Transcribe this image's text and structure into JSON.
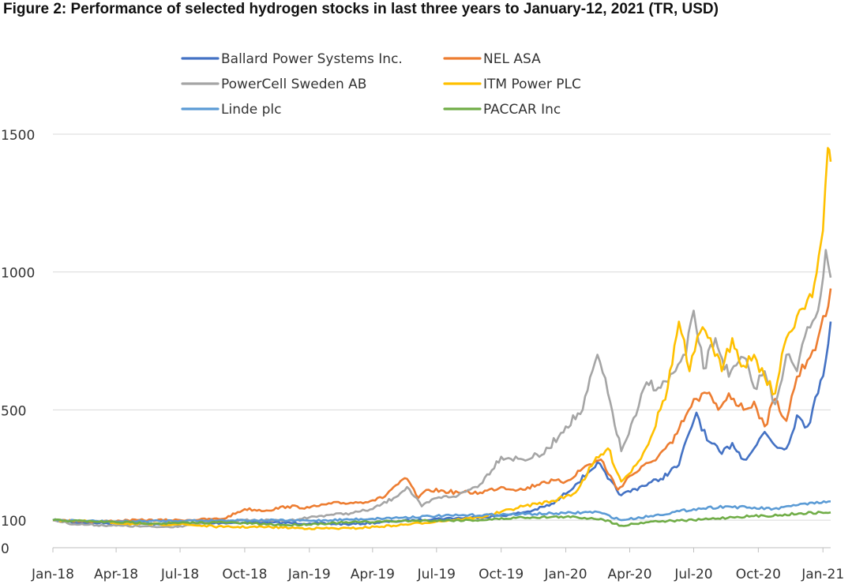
{
  "chart_data": {
    "type": "line",
    "title": "Figure 2: Performance of selected hydrogen stocks in last three years to January-12, 2021 (TR, USD)",
    "xlabel": "",
    "ylabel": "",
    "x_range": [
      "2018-01-01",
      "2021-01-12"
    ],
    "ylim": [
      0,
      1500
    ],
    "y_ticks": [
      0,
      100,
      500,
      1000,
      1500
    ],
    "x_ticks": [
      "Jan-18",
      "Apr-18",
      "Jul-18",
      "Oct-18",
      "Jan-19",
      "Apr-19",
      "Jul-19",
      "Oct-19",
      "Jan-20",
      "Apr-20",
      "Jul-20",
      "Oct-20",
      "Jan-21"
    ],
    "x_tick_dates": [
      "2018-01-01",
      "2018-04-01",
      "2018-07-01",
      "2018-10-01",
      "2019-01-01",
      "2019-04-01",
      "2019-07-01",
      "2019-10-01",
      "2020-01-01",
      "2020-04-01",
      "2020-07-01",
      "2020-10-01",
      "2021-01-01"
    ],
    "grid": "horizontal",
    "legend_position": "top",
    "series": [
      {
        "name": "Ballard Power Systems Inc.",
        "color": "#4472C4",
        "points": [
          [
            "2018-01-01",
            100
          ],
          [
            "2018-02-01",
            92
          ],
          [
            "2018-03-01",
            90
          ],
          [
            "2018-05-01",
            88
          ],
          [
            "2018-07-01",
            85
          ],
          [
            "2018-09-01",
            90
          ],
          [
            "2018-11-01",
            92
          ],
          [
            "2019-01-01",
            88
          ],
          [
            "2019-03-01",
            85
          ],
          [
            "2019-05-01",
            95
          ],
          [
            "2019-07-01",
            105
          ],
          [
            "2019-09-01",
            110
          ],
          [
            "2019-10-15",
            120
          ],
          [
            "2019-11-15",
            135
          ],
          [
            "2019-12-15",
            160
          ],
          [
            "2020-01-15",
            230
          ],
          [
            "2020-02-01",
            270
          ],
          [
            "2020-02-15",
            310
          ],
          [
            "2020-03-01",
            250
          ],
          [
            "2020-03-20",
            190
          ],
          [
            "2020-04-15",
            220
          ],
          [
            "2020-05-15",
            250
          ],
          [
            "2020-06-10",
            300
          ],
          [
            "2020-06-25",
            420
          ],
          [
            "2020-07-05",
            490
          ],
          [
            "2020-07-20",
            390
          ],
          [
            "2020-08-10",
            340
          ],
          [
            "2020-08-25",
            380
          ],
          [
            "2020-09-10",
            320
          ],
          [
            "2020-09-25",
            360
          ],
          [
            "2020-10-10",
            420
          ],
          [
            "2020-10-25",
            370
          ],
          [
            "2020-11-10",
            360
          ],
          [
            "2020-11-25",
            480
          ],
          [
            "2020-12-10",
            440
          ],
          [
            "2020-12-25",
            560
          ],
          [
            "2021-01-05",
            680
          ],
          [
            "2021-01-12",
            820
          ]
        ]
      },
      {
        "name": "NEL ASA",
        "color": "#ED7D31",
        "points": [
          [
            "2018-01-01",
            100
          ],
          [
            "2018-03-01",
            95
          ],
          [
            "2018-05-01",
            100
          ],
          [
            "2018-07-01",
            100
          ],
          [
            "2018-09-01",
            105
          ],
          [
            "2018-10-01",
            140
          ],
          [
            "2018-11-01",
            135
          ],
          [
            "2018-12-01",
            150
          ],
          [
            "2019-01-01",
            145
          ],
          [
            "2019-02-01",
            160
          ],
          [
            "2019-03-15",
            165
          ],
          [
            "2019-04-15",
            180
          ],
          [
            "2019-05-01",
            220
          ],
          [
            "2019-05-20",
            250
          ],
          [
            "2019-06-05",
            180
          ],
          [
            "2019-06-20",
            210
          ],
          [
            "2019-08-01",
            200
          ],
          [
            "2019-09-01",
            200
          ],
          [
            "2019-10-01",
            220
          ],
          [
            "2019-11-01",
            210
          ],
          [
            "2019-12-01",
            240
          ],
          [
            "2020-01-01",
            240
          ],
          [
            "2020-02-01",
            300
          ],
          [
            "2020-02-20",
            320
          ],
          [
            "2020-03-15",
            210
          ],
          [
            "2020-04-01",
            260
          ],
          [
            "2020-05-01",
            310
          ],
          [
            "2020-06-01",
            380
          ],
          [
            "2020-06-20",
            480
          ],
          [
            "2020-07-05",
            540
          ],
          [
            "2020-07-20",
            560
          ],
          [
            "2020-08-05",
            500
          ],
          [
            "2020-08-20",
            560
          ],
          [
            "2020-09-10",
            500
          ],
          [
            "2020-09-25",
            530
          ],
          [
            "2020-10-10",
            440
          ],
          [
            "2020-10-25",
            540
          ],
          [
            "2020-11-10",
            460
          ],
          [
            "2020-11-25",
            620
          ],
          [
            "2020-12-10",
            680
          ],
          [
            "2020-12-25",
            760
          ],
          [
            "2021-01-05",
            840
          ],
          [
            "2021-01-12",
            940
          ]
        ]
      },
      {
        "name": "PowerCell Sweden AB",
        "color": "#A5A5A5",
        "points": [
          [
            "2018-01-01",
            100
          ],
          [
            "2018-02-01",
            85
          ],
          [
            "2018-04-01",
            80
          ],
          [
            "2018-06-01",
            75
          ],
          [
            "2018-07-01",
            78
          ],
          [
            "2018-08-01",
            90
          ],
          [
            "2018-10-01",
            100
          ],
          [
            "2018-12-01",
            98
          ],
          [
            "2019-01-01",
            110
          ],
          [
            "2019-02-01",
            120
          ],
          [
            "2019-03-01",
            125
          ],
          [
            "2019-04-01",
            140
          ],
          [
            "2019-05-01",
            180
          ],
          [
            "2019-05-20",
            220
          ],
          [
            "2019-06-10",
            150
          ],
          [
            "2019-07-01",
            180
          ],
          [
            "2019-08-01",
            190
          ],
          [
            "2019-09-01",
            230
          ],
          [
            "2019-10-01",
            330
          ],
          [
            "2019-11-01",
            320
          ],
          [
            "2019-12-01",
            340
          ],
          [
            "2020-01-01",
            440
          ],
          [
            "2020-01-25",
            500
          ],
          [
            "2020-02-15",
            700
          ],
          [
            "2020-03-01",
            560
          ],
          [
            "2020-03-20",
            350
          ],
          [
            "2020-04-10",
            480
          ],
          [
            "2020-04-25",
            600
          ],
          [
            "2020-05-15",
            580
          ],
          [
            "2020-06-05",
            640
          ],
          [
            "2020-06-20",
            700
          ],
          [
            "2020-07-01",
            860
          ],
          [
            "2020-07-15",
            650
          ],
          [
            "2020-08-01",
            760
          ],
          [
            "2020-08-20",
            620
          ],
          [
            "2020-09-10",
            690
          ],
          [
            "2020-09-25",
            580
          ],
          [
            "2020-10-10",
            640
          ],
          [
            "2020-10-25",
            520
          ],
          [
            "2020-11-10",
            700
          ],
          [
            "2020-11-25",
            640
          ],
          [
            "2020-12-10",
            800
          ],
          [
            "2020-12-25",
            860
          ],
          [
            "2021-01-05",
            1080
          ],
          [
            "2021-01-12",
            980
          ]
        ]
      },
      {
        "name": "ITM Power PLC",
        "color": "#FFC000",
        "points": [
          [
            "2018-01-01",
            100
          ],
          [
            "2018-03-01",
            95
          ],
          [
            "2018-05-01",
            85
          ],
          [
            "2018-07-01",
            85
          ],
          [
            "2018-09-01",
            75
          ],
          [
            "2018-11-01",
            75
          ],
          [
            "2019-01-01",
            70
          ],
          [
            "2019-03-01",
            70
          ],
          [
            "2019-05-01",
            80
          ],
          [
            "2019-07-01",
            95
          ],
          [
            "2019-09-01",
            110
          ],
          [
            "2019-11-01",
            150
          ],
          [
            "2019-12-15",
            170
          ],
          [
            "2020-01-15",
            200
          ],
          [
            "2020-02-10",
            310
          ],
          [
            "2020-03-01",
            360
          ],
          [
            "2020-03-20",
            240
          ],
          [
            "2020-04-10",
            300
          ],
          [
            "2020-05-01",
            400
          ],
          [
            "2020-05-25",
            580
          ],
          [
            "2020-06-10",
            820
          ],
          [
            "2020-06-25",
            640
          ],
          [
            "2020-07-10",
            780
          ],
          [
            "2020-07-25",
            760
          ],
          [
            "2020-08-10",
            640
          ],
          [
            "2020-08-25",
            760
          ],
          [
            "2020-09-10",
            660
          ],
          [
            "2020-09-25",
            700
          ],
          [
            "2020-10-10",
            620
          ],
          [
            "2020-10-25",
            560
          ],
          [
            "2020-11-10",
            760
          ],
          [
            "2020-11-25",
            840
          ],
          [
            "2020-12-10",
            900
          ],
          [
            "2020-12-20",
            960
          ],
          [
            "2021-01-01",
            1150
          ],
          [
            "2021-01-08",
            1450
          ],
          [
            "2021-01-12",
            1400
          ]
        ]
      },
      {
        "name": "Linde plc",
        "color": "#5B9BD5",
        "points": [
          [
            "2018-01-01",
            100
          ],
          [
            "2018-04-01",
            95
          ],
          [
            "2018-07-01",
            98
          ],
          [
            "2018-10-01",
            100
          ],
          [
            "2019-01-01",
            98
          ],
          [
            "2019-04-01",
            105
          ],
          [
            "2019-07-01",
            115
          ],
          [
            "2019-10-01",
            120
          ],
          [
            "2020-01-01",
            125
          ],
          [
            "2020-02-15",
            130
          ],
          [
            "2020-03-20",
            100
          ],
          [
            "2020-05-01",
            115
          ],
          [
            "2020-07-01",
            140
          ],
          [
            "2020-08-15",
            150
          ],
          [
            "2020-09-15",
            145
          ],
          [
            "2020-10-30",
            140
          ],
          [
            "2020-11-20",
            155
          ],
          [
            "2020-12-20",
            160
          ],
          [
            "2021-01-12",
            168
          ]
        ]
      },
      {
        "name": "PACCAR Inc",
        "color": "#70AD47",
        "points": [
          [
            "2018-01-01",
            100
          ],
          [
            "2018-03-01",
            95
          ],
          [
            "2018-06-01",
            88
          ],
          [
            "2018-09-01",
            92
          ],
          [
            "2018-12-01",
            82
          ],
          [
            "2019-03-01",
            92
          ],
          [
            "2019-06-01",
            98
          ],
          [
            "2019-09-01",
            100
          ],
          [
            "2019-11-01",
            110
          ],
          [
            "2020-01-01",
            112
          ],
          [
            "2020-02-20",
            105
          ],
          [
            "2020-03-20",
            80
          ],
          [
            "2020-05-01",
            95
          ],
          [
            "2020-07-01",
            100
          ],
          [
            "2020-09-01",
            112
          ],
          [
            "2020-11-01",
            118
          ],
          [
            "2020-12-01",
            125
          ],
          [
            "2021-01-12",
            128
          ]
        ]
      }
    ]
  }
}
